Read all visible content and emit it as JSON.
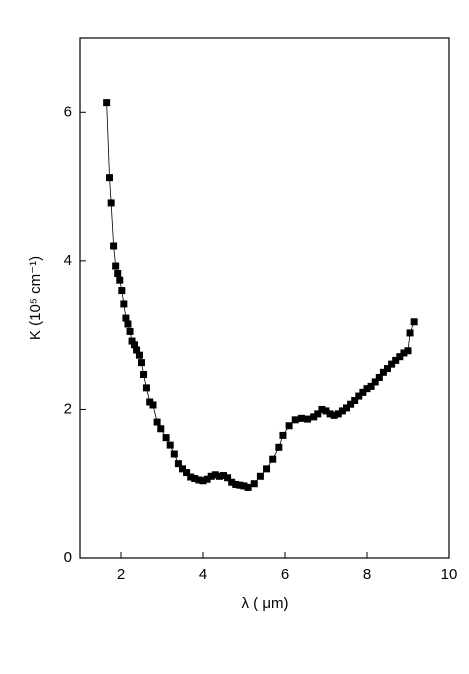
{
  "chart_data": {
    "type": "line-scatter",
    "xlabel": "λ ( μm)",
    "ylabel": "K (10⁵ cm⁻¹)",
    "color": "#000000",
    "xlim": [
      1,
      10
    ],
    "xticks": [
      2,
      4,
      6,
      8,
      10
    ],
    "ylim": [
      0,
      7
    ],
    "yticks": [
      0,
      2,
      4,
      6
    ],
    "x": [
      1.65,
      1.72,
      1.76,
      1.82,
      1.87,
      1.92,
      1.97,
      2.02,
      2.07,
      2.12,
      2.17,
      2.22,
      2.27,
      2.33,
      2.38,
      2.45,
      2.5,
      2.55,
      2.62,
      2.7,
      2.78,
      2.88,
      2.97,
      3.1,
      3.2,
      3.3,
      3.4,
      3.5,
      3.6,
      3.7,
      3.8,
      3.9,
      4.0,
      4.1,
      4.2,
      4.3,
      4.4,
      4.5,
      4.6,
      4.7,
      4.8,
      4.9,
      5.0,
      5.1,
      5.25,
      5.4,
      5.55,
      5.7,
      5.85,
      5.95,
      6.1,
      6.25,
      6.4,
      6.55,
      6.7,
      6.8,
      6.9,
      7.0,
      7.1,
      7.2,
      7.3,
      7.4,
      7.5,
      7.6,
      7.7,
      7.8,
      7.9,
      8.0,
      8.1,
      8.2,
      8.3,
      8.4,
      8.5,
      8.6,
      8.7,
      8.8,
      8.9,
      9.0,
      9.05,
      9.15
    ],
    "values": [
      6.13,
      5.12,
      4.78,
      4.2,
      3.93,
      3.83,
      3.74,
      3.6,
      3.42,
      3.23,
      3.15,
      3.05,
      2.92,
      2.87,
      2.8,
      2.73,
      2.63,
      2.47,
      2.29,
      2.1,
      2.06,
      1.83,
      1.74,
      1.62,
      1.52,
      1.4,
      1.27,
      1.2,
      1.15,
      1.09,
      1.07,
      1.05,
      1.04,
      1.06,
      1.1,
      1.12,
      1.1,
      1.11,
      1.08,
      1.02,
      0.99,
      0.98,
      0.97,
      0.95,
      1.0,
      1.1,
      1.2,
      1.33,
      1.49,
      1.65,
      1.78,
      1.86,
      1.88,
      1.87,
      1.9,
      1.94,
      2.0,
      1.98,
      1.94,
      1.92,
      1.94,
      1.98,
      2.02,
      2.07,
      2.12,
      2.18,
      2.23,
      2.28,
      2.31,
      2.37,
      2.43,
      2.5,
      2.55,
      2.61,
      2.66,
      2.71,
      2.76,
      2.79,
      3.03,
      3.18
    ]
  }
}
